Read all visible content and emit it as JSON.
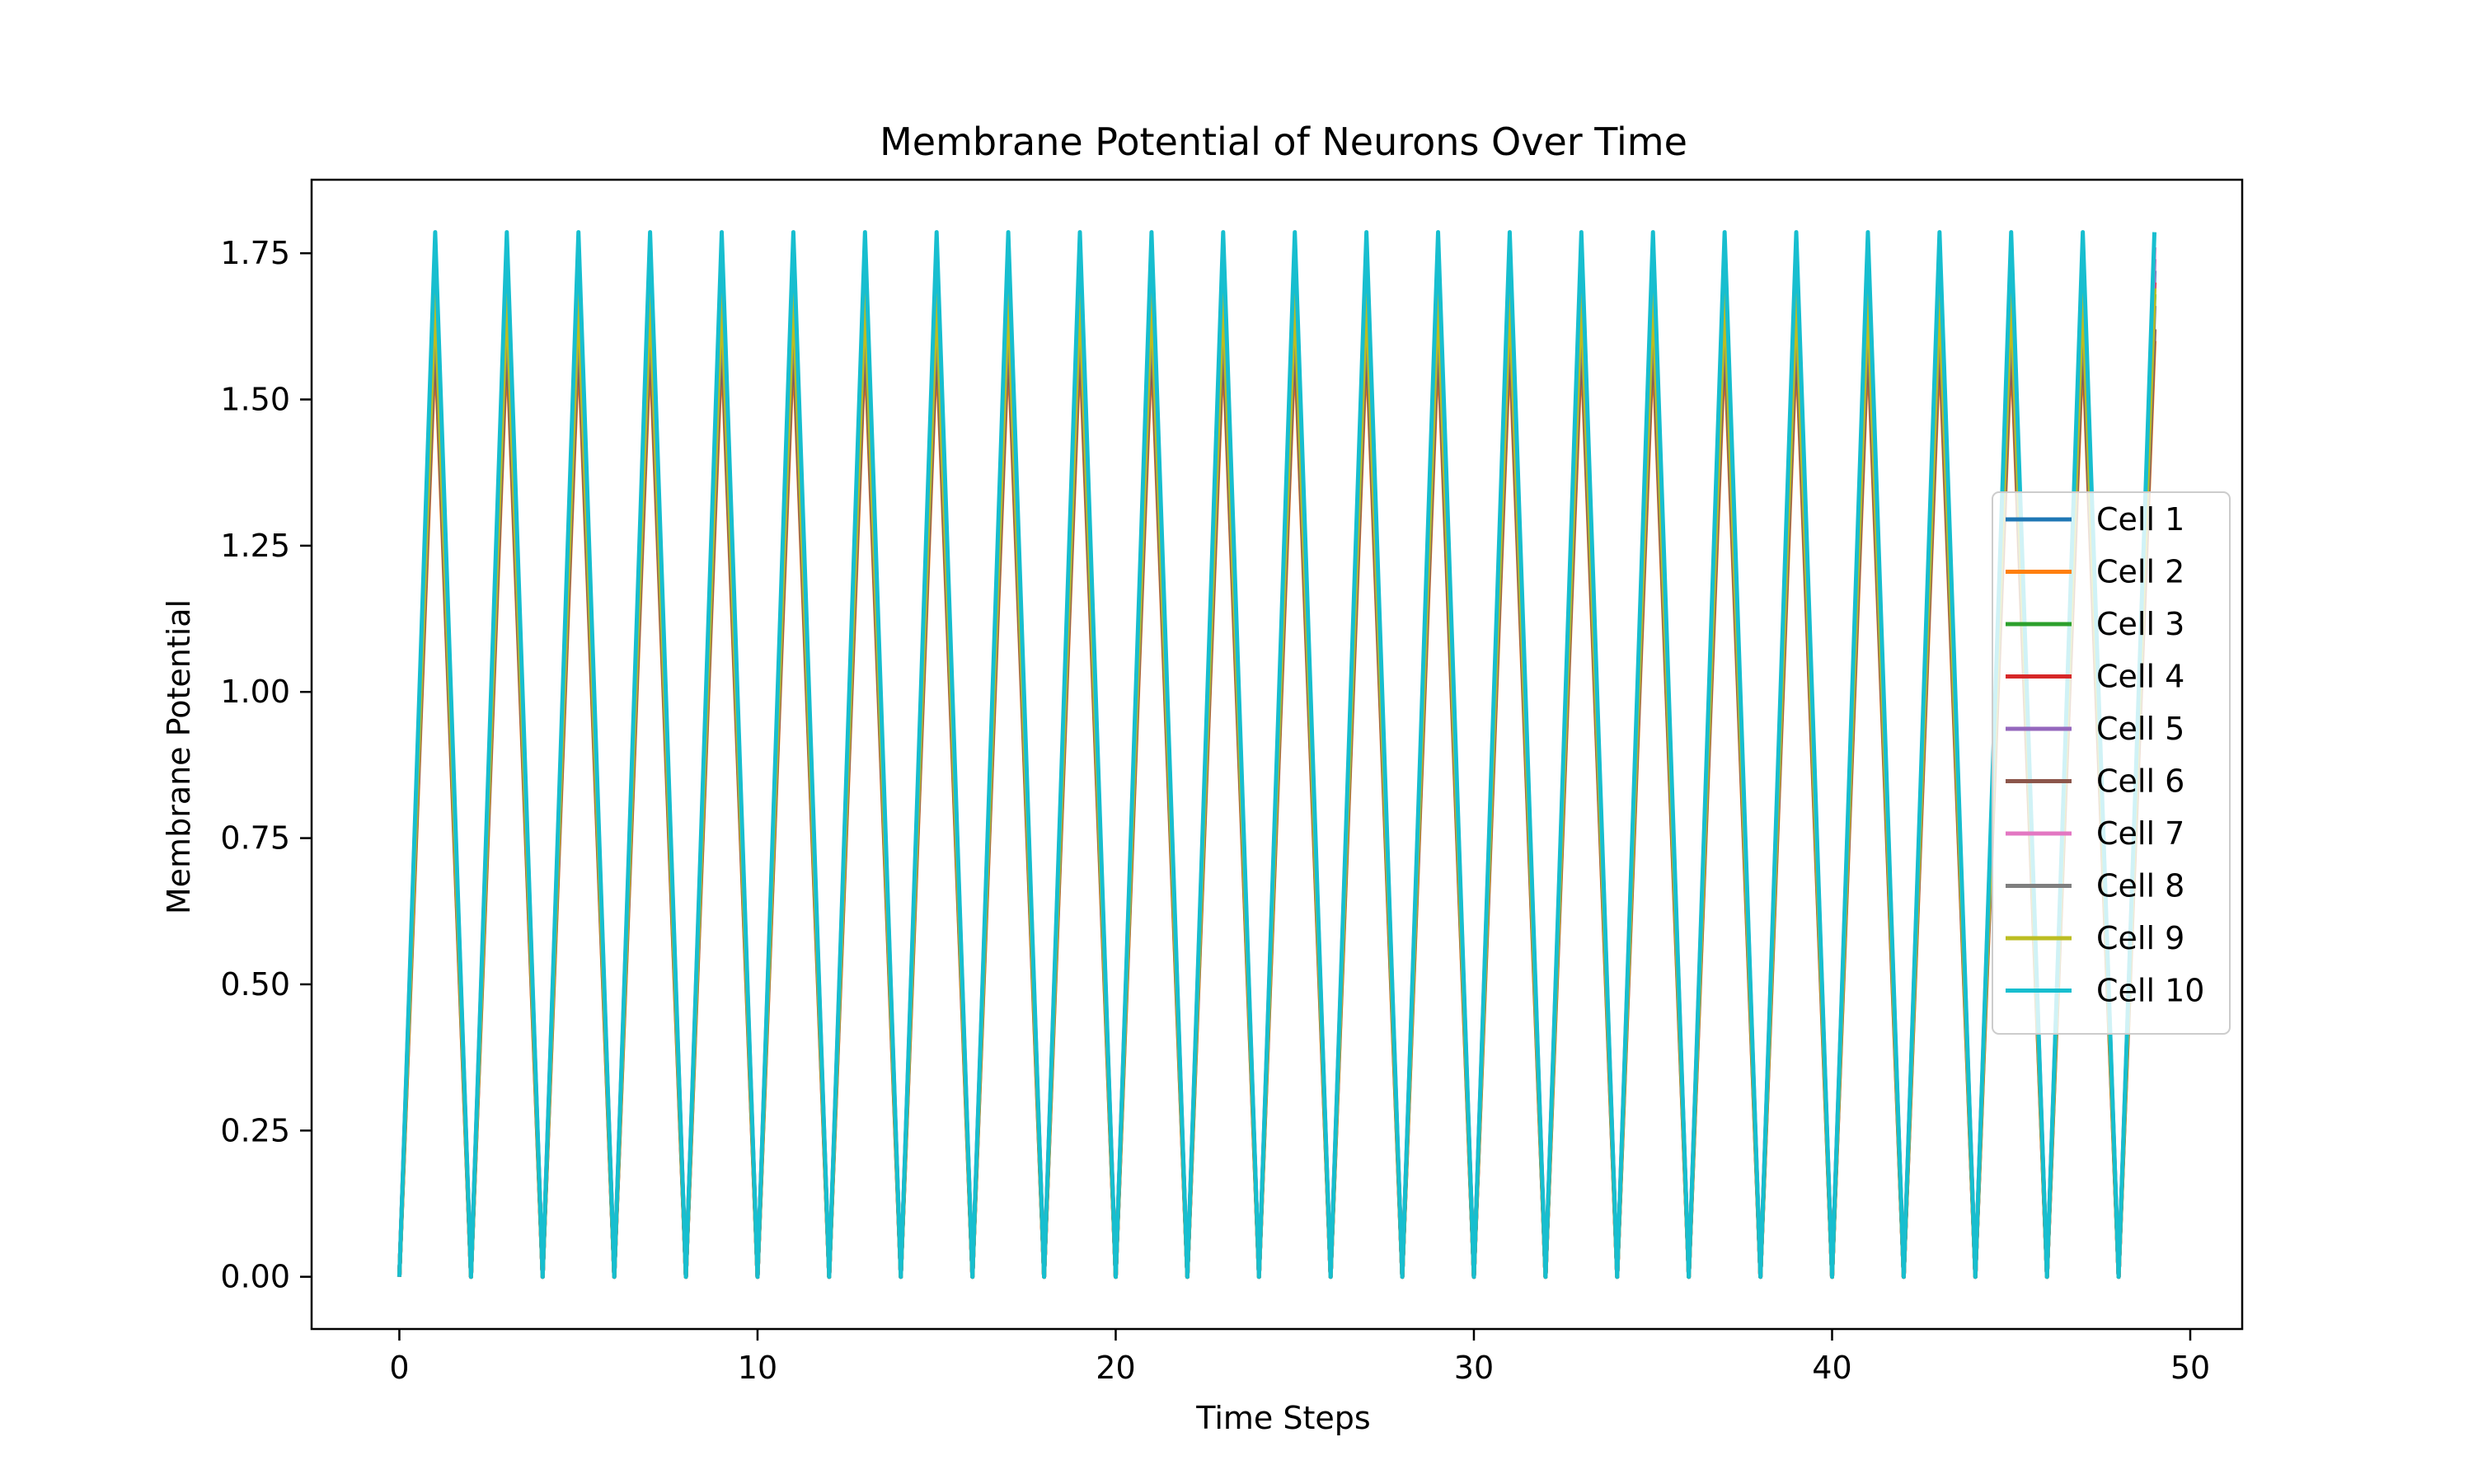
{
  "chart_data": {
    "type": "line",
    "title": "Membrane Potential of Neurons Over Time",
    "xlabel": "Time Steps",
    "ylabel": "Membrane Potential",
    "xlim": [
      -2.45,
      51.45
    ],
    "ylim": [
      -0.0893,
      1.8757
    ],
    "xticks": [
      0,
      10,
      20,
      30,
      40,
      50
    ],
    "xtick_labels": [
      "0",
      "10",
      "20",
      "30",
      "40",
      "50"
    ],
    "yticks": [
      0,
      0.25,
      0.5,
      0.75,
      1.0,
      1.25,
      1.5,
      1.75
    ],
    "ytick_labels": [
      "0.00",
      "0.25",
      "0.50",
      "0.75",
      "1.00",
      "1.25",
      "1.50",
      "1.75"
    ],
    "grid": false,
    "legend_position": "center-right",
    "x": [
      0,
      1,
      2,
      3,
      4,
      5,
      6,
      7,
      8,
      9,
      10,
      11,
      12,
      13,
      14,
      15,
      16,
      17,
      18,
      19,
      20,
      21,
      22,
      23,
      24,
      25,
      26,
      27,
      28,
      29,
      30,
      31,
      32,
      33,
      34,
      35,
      36,
      37,
      38,
      39,
      40,
      41,
      42,
      43,
      44,
      45,
      46,
      47,
      48,
      49
    ],
    "series": [
      {
        "name": "Cell 1",
        "color": "#1f77b4",
        "peak": 1.72
      },
      {
        "name": "Cell 2",
        "color": "#ff7f0e",
        "peak": 1.6
      },
      {
        "name": "Cell 3",
        "color": "#2ca02c",
        "peak": 1.68
      },
      {
        "name": "Cell 4",
        "color": "#d62728",
        "peak": 1.7
      },
      {
        "name": "Cell 5",
        "color": "#9467bd",
        "peak": 1.74
      },
      {
        "name": "Cell 6",
        "color": "#8c564b",
        "peak": 1.62
      },
      {
        "name": "Cell 7",
        "color": "#e377c2",
        "peak": 1.76
      },
      {
        "name": "Cell 8",
        "color": "#7f7f7f",
        "peak": 1.66
      },
      {
        "name": "Cell 9",
        "color": "#bcbd22",
        "peak": 1.69
      },
      {
        "name": "Cell 10",
        "color": "#17becf",
        "peak": 1.786
      }
    ]
  }
}
